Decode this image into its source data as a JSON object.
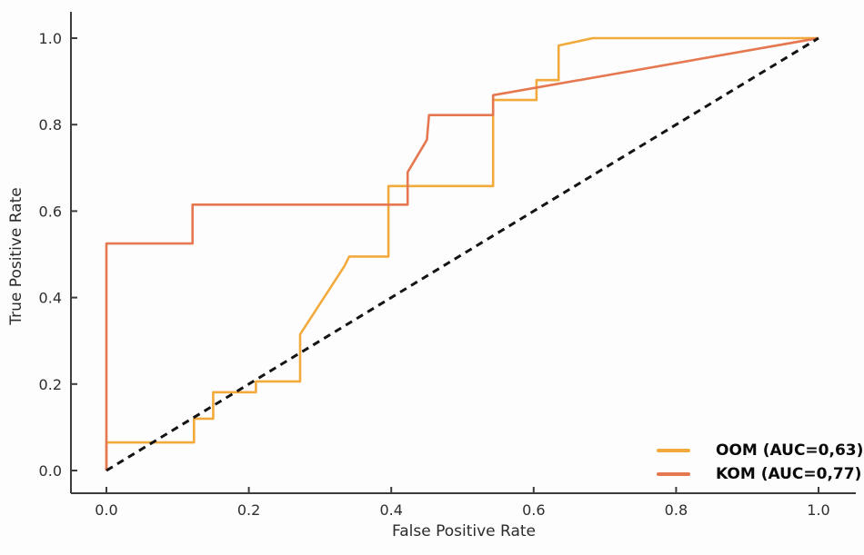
{
  "chart_data": {
    "type": "line",
    "title": "",
    "xlabel": "False Positive Rate",
    "ylabel": "True Positive Rate",
    "xlim": [
      0.0,
      1.0
    ],
    "ylim": [
      0.0,
      1.0
    ],
    "x_ticks": [
      "0.0",
      "0.2",
      "0.4",
      "0.6",
      "0.8",
      "1.0"
    ],
    "y_ticks": [
      "0.0",
      "0.2",
      "0.4",
      "0.6",
      "0.8",
      "1.0"
    ],
    "grid": false,
    "legend_position": "lower right",
    "series": [
      {
        "name": "OOM",
        "label": "OOM (AUC=0,63)",
        "auc": "0,63",
        "color": "#F2AA3C",
        "line_style": "solid",
        "points": [
          [
            0.0,
            0.0
          ],
          [
            0.0,
            0.065
          ],
          [
            0.123,
            0.065
          ],
          [
            0.123,
            0.12
          ],
          [
            0.15,
            0.12
          ],
          [
            0.15,
            0.181
          ],
          [
            0.21,
            0.181
          ],
          [
            0.21,
            0.206
          ],
          [
            0.272,
            0.206
          ],
          [
            0.272,
            0.315
          ],
          [
            0.334,
            0.472
          ],
          [
            0.341,
            0.495
          ],
          [
            0.396,
            0.495
          ],
          [
            0.396,
            0.658
          ],
          [
            0.543,
            0.658
          ],
          [
            0.543,
            0.857
          ],
          [
            0.604,
            0.857
          ],
          [
            0.604,
            0.903
          ],
          [
            0.635,
            0.903
          ],
          [
            0.635,
            0.983
          ],
          [
            0.683,
            1.0
          ],
          [
            1.0,
            1.0
          ]
        ]
      },
      {
        "name": "KOM",
        "label": "KOM (AUC=0,77)",
        "auc": "0,77",
        "color": "#E57850",
        "line_style": "solid",
        "points": [
          [
            0.0,
            0.0
          ],
          [
            0.0,
            0.525
          ],
          [
            0.121,
            0.525
          ],
          [
            0.121,
            0.615
          ],
          [
            0.423,
            0.615
          ],
          [
            0.423,
            0.69
          ],
          [
            0.45,
            0.765
          ],
          [
            0.453,
            0.822
          ],
          [
            0.543,
            0.822
          ],
          [
            0.543,
            0.868
          ],
          [
            1.0,
            1.0
          ]
        ]
      },
      {
        "name": "chance",
        "label": "",
        "color": "#141414",
        "line_style": "dashed",
        "points": [
          [
            0.0,
            0.0
          ],
          [
            1.0,
            1.0
          ]
        ]
      }
    ],
    "colors": {
      "axis": "#3c3c3c",
      "tick_label": "#2e2e2e",
      "legend_text": "#0a0a0a"
    }
  }
}
